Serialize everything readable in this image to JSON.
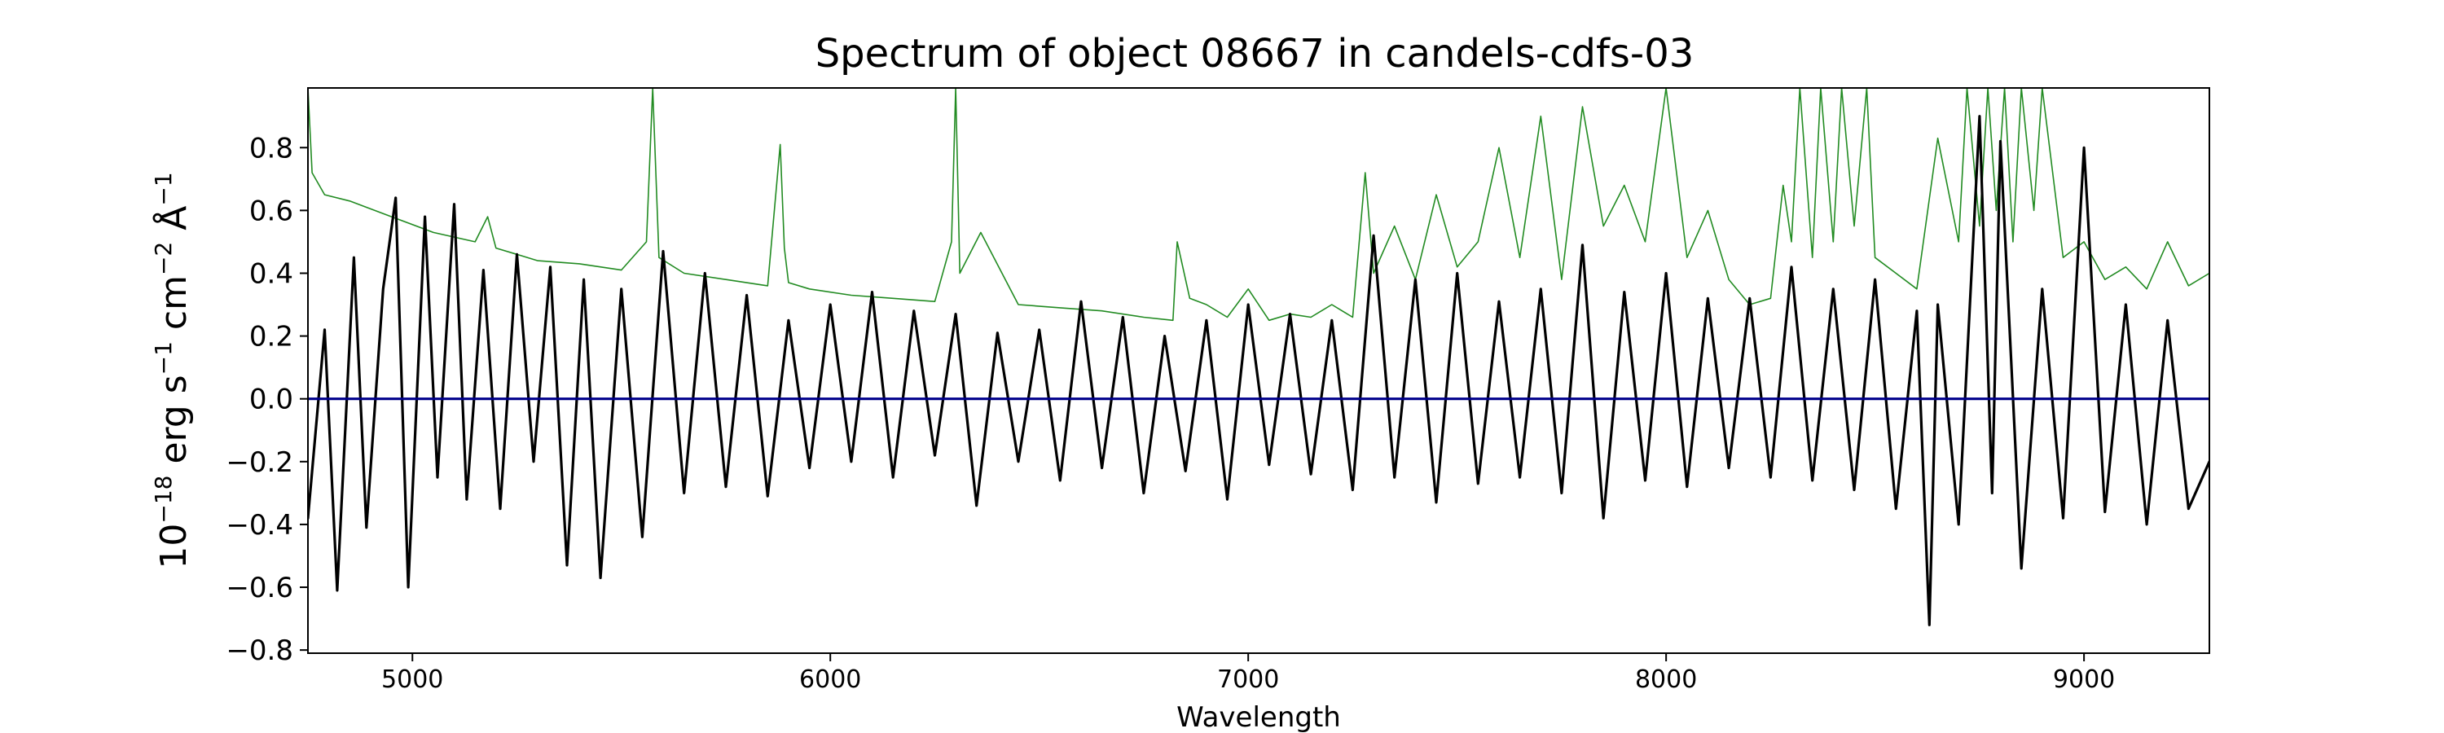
{
  "chart_data": {
    "type": "line",
    "title": "Spectrum of object 08667 in candels-cdfs-03",
    "xlabel": "Wavelength",
    "ylabel": {
      "prefix": "10",
      "exp": "−18",
      "unit1": " erg s",
      "exp1": "−1",
      "unit2": " cm",
      "exp2": "−2",
      "unit3": " Å",
      "exp3": "−1"
    },
    "xlim": [
      4750,
      9300
    ],
    "ylim": [
      -0.81,
      0.99
    ],
    "x_ticks": [
      5000,
      6000,
      7000,
      8000,
      9000
    ],
    "x_tick_labels": [
      "5000",
      "6000",
      "7000",
      "8000",
      "9000"
    ],
    "y_ticks": [
      -0.8,
      -0.6,
      -0.4,
      -0.2,
      0.0,
      0.2,
      0.4,
      0.6,
      0.8
    ],
    "y_tick_labels": [
      "−0.8",
      "−0.6",
      "−0.4",
      "−0.2",
      "0.0",
      "0.2",
      "0.4",
      "0.6",
      "0.8"
    ],
    "grid": false,
    "legend": "none",
    "series": [
      {
        "color": "#000000",
        "x": [
          4750,
          4790,
          4820,
          4860,
          4890,
          4930,
          4960,
          4990,
          5030,
          5060,
          5100,
          5130,
          5170,
          5210,
          5250,
          5290,
          5330,
          5370,
          5410,
          5450,
          5500,
          5550,
          5600,
          5650,
          5700,
          5750,
          5800,
          5850,
          5900,
          5950,
          6000,
          6050,
          6100,
          6150,
          6200,
          6250,
          6300,
          6350,
          6400,
          6450,
          6500,
          6550,
          6600,
          6650,
          6700,
          6750,
          6800,
          6850,
          6900,
          6950,
          7000,
          7050,
          7100,
          7150,
          7200,
          7250,
          7300,
          7350,
          7400,
          7450,
          7500,
          7550,
          7600,
          7650,
          7700,
          7750,
          7800,
          7850,
          7900,
          7950,
          8000,
          8050,
          8100,
          8150,
          8200,
          8250,
          8300,
          8350,
          8400,
          8450,
          8500,
          8550,
          8600,
          8630,
          8650,
          8700,
          8750,
          8780,
          8800,
          8850,
          8900,
          8950,
          9000,
          9050,
          9100,
          9150,
          9200,
          9250,
          9300
        ],
        "y": [
          -0.38,
          0.22,
          -0.61,
          0.45,
          -0.41,
          0.35,
          0.64,
          -0.6,
          0.58,
          -0.25,
          0.62,
          -0.32,
          0.41,
          -0.35,
          0.46,
          -0.2,
          0.42,
          -0.53,
          0.38,
          -0.57,
          0.35,
          -0.44,
          0.47,
          -0.3,
          0.4,
          -0.28,
          0.33,
          -0.31,
          0.25,
          -0.22,
          0.3,
          -0.2,
          0.34,
          -0.25,
          0.28,
          -0.18,
          0.27,
          -0.34,
          0.21,
          -0.2,
          0.22,
          -0.26,
          0.31,
          -0.22,
          0.26,
          -0.3,
          0.2,
          -0.23,
          0.25,
          -0.32,
          0.3,
          -0.21,
          0.27,
          -0.24,
          0.25,
          -0.29,
          0.52,
          -0.25,
          0.38,
          -0.33,
          0.4,
          -0.27,
          0.31,
          -0.25,
          0.35,
          -0.3,
          0.49,
          -0.38,
          0.34,
          -0.26,
          0.4,
          -0.28,
          0.32,
          -0.22,
          0.32,
          -0.25,
          0.42,
          -0.26,
          0.35,
          -0.29,
          0.38,
          -0.35,
          0.28,
          -0.72,
          0.3,
          -0.4,
          0.9,
          -0.3,
          0.82,
          -0.54,
          0.35,
          -0.38,
          0.8,
          -0.36,
          0.3,
          -0.4,
          0.25,
          -0.35,
          -0.2
        ]
      },
      {
        "color": "#228B22",
        "x": [
          4750,
          4760,
          4790,
          4850,
          4950,
          5050,
          5150,
          5180,
          5200,
          5250,
          5300,
          5400,
          5500,
          5560,
          5575,
          5590,
          5650,
          5750,
          5850,
          5880,
          5890,
          5900,
          5950,
          6050,
          6150,
          6250,
          6290,
          6300,
          6310,
          6360,
          6450,
          6550,
          6650,
          6750,
          6820,
          6830,
          6860,
          6900,
          6950,
          7000,
          7050,
          7100,
          7150,
          7200,
          7250,
          7280,
          7300,
          7350,
          7400,
          7450,
          7500,
          7550,
          7600,
          7650,
          7700,
          7750,
          7800,
          7850,
          7900,
          7950,
          8000,
          8050,
          8100,
          8150,
          8200,
          8250,
          8280,
          8300,
          8320,
          8350,
          8370,
          8400,
          8420,
          8450,
          8480,
          8500,
          8550,
          8600,
          8650,
          8700,
          8720,
          8750,
          8770,
          8790,
          8810,
          8830,
          8850,
          8880,
          8900,
          8950,
          9000,
          9050,
          9100,
          9150,
          9200,
          9250,
          9300
        ],
        "y": [
          0.99,
          0.72,
          0.65,
          0.63,
          0.58,
          0.53,
          0.5,
          0.58,
          0.48,
          0.46,
          0.44,
          0.43,
          0.41,
          0.5,
          0.99,
          0.45,
          0.4,
          0.38,
          0.36,
          0.81,
          0.48,
          0.37,
          0.35,
          0.33,
          0.32,
          0.31,
          0.5,
          0.99,
          0.4,
          0.53,
          0.3,
          0.29,
          0.28,
          0.26,
          0.25,
          0.5,
          0.32,
          0.3,
          0.26,
          0.35,
          0.25,
          0.27,
          0.26,
          0.3,
          0.26,
          0.72,
          0.4,
          0.55,
          0.38,
          0.65,
          0.42,
          0.5,
          0.8,
          0.45,
          0.9,
          0.38,
          0.93,
          0.55,
          0.68,
          0.5,
          0.99,
          0.45,
          0.6,
          0.38,
          0.3,
          0.32,
          0.68,
          0.5,
          0.99,
          0.45,
          0.99,
          0.5,
          0.99,
          0.55,
          0.99,
          0.45,
          0.4,
          0.35,
          0.83,
          0.5,
          0.99,
          0.55,
          0.99,
          0.6,
          0.99,
          0.5,
          0.99,
          0.6,
          0.99,
          0.45,
          0.5,
          0.38,
          0.42,
          0.35,
          0.5,
          0.36,
          0.4
        ]
      },
      {
        "color": "#00008B",
        "x": [
          4750,
          9300
        ],
        "y": [
          0.0,
          0.0
        ]
      }
    ]
  }
}
